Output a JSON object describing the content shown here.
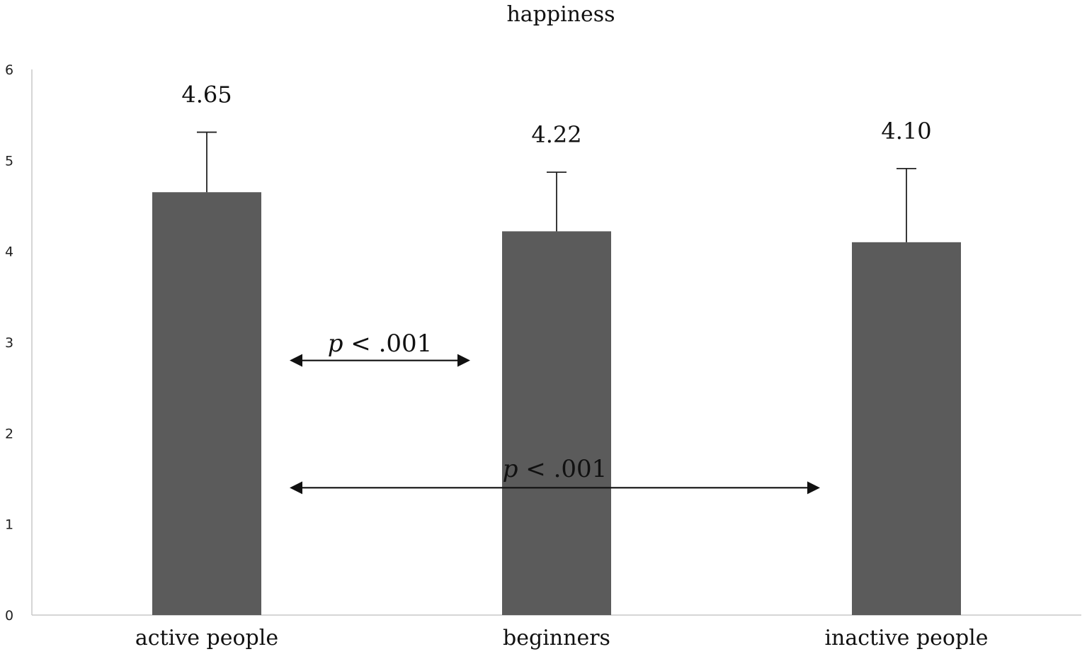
{
  "chart_data": {
    "type": "bar",
    "title": "happiness",
    "categories": [
      "active people",
      "beginners",
      "inactive people"
    ],
    "values": [
      4.65,
      4.22,
      4.1
    ],
    "value_labels": [
      "4.65",
      "4.22",
      "4.10"
    ],
    "error_upper": [
      5.31,
      4.87,
      4.91
    ],
    "ylim": [
      0,
      6
    ],
    "yticks": [
      "0",
      "1",
      "2",
      "3",
      "4",
      "5",
      "6"
    ],
    "bar_color": "#5b5b5b",
    "grid": false,
    "legend": "none",
    "annotations": [
      {
        "p": "p",
        "rest": " < .001",
        "from": "active people",
        "to": "beginners",
        "y": 2.8,
        "label_y": 2.9
      },
      {
        "p": "p",
        "rest": " < .001",
        "from": "active people",
        "to": "inactive people",
        "y": 1.4,
        "label_y": 1.52
      }
    ]
  }
}
